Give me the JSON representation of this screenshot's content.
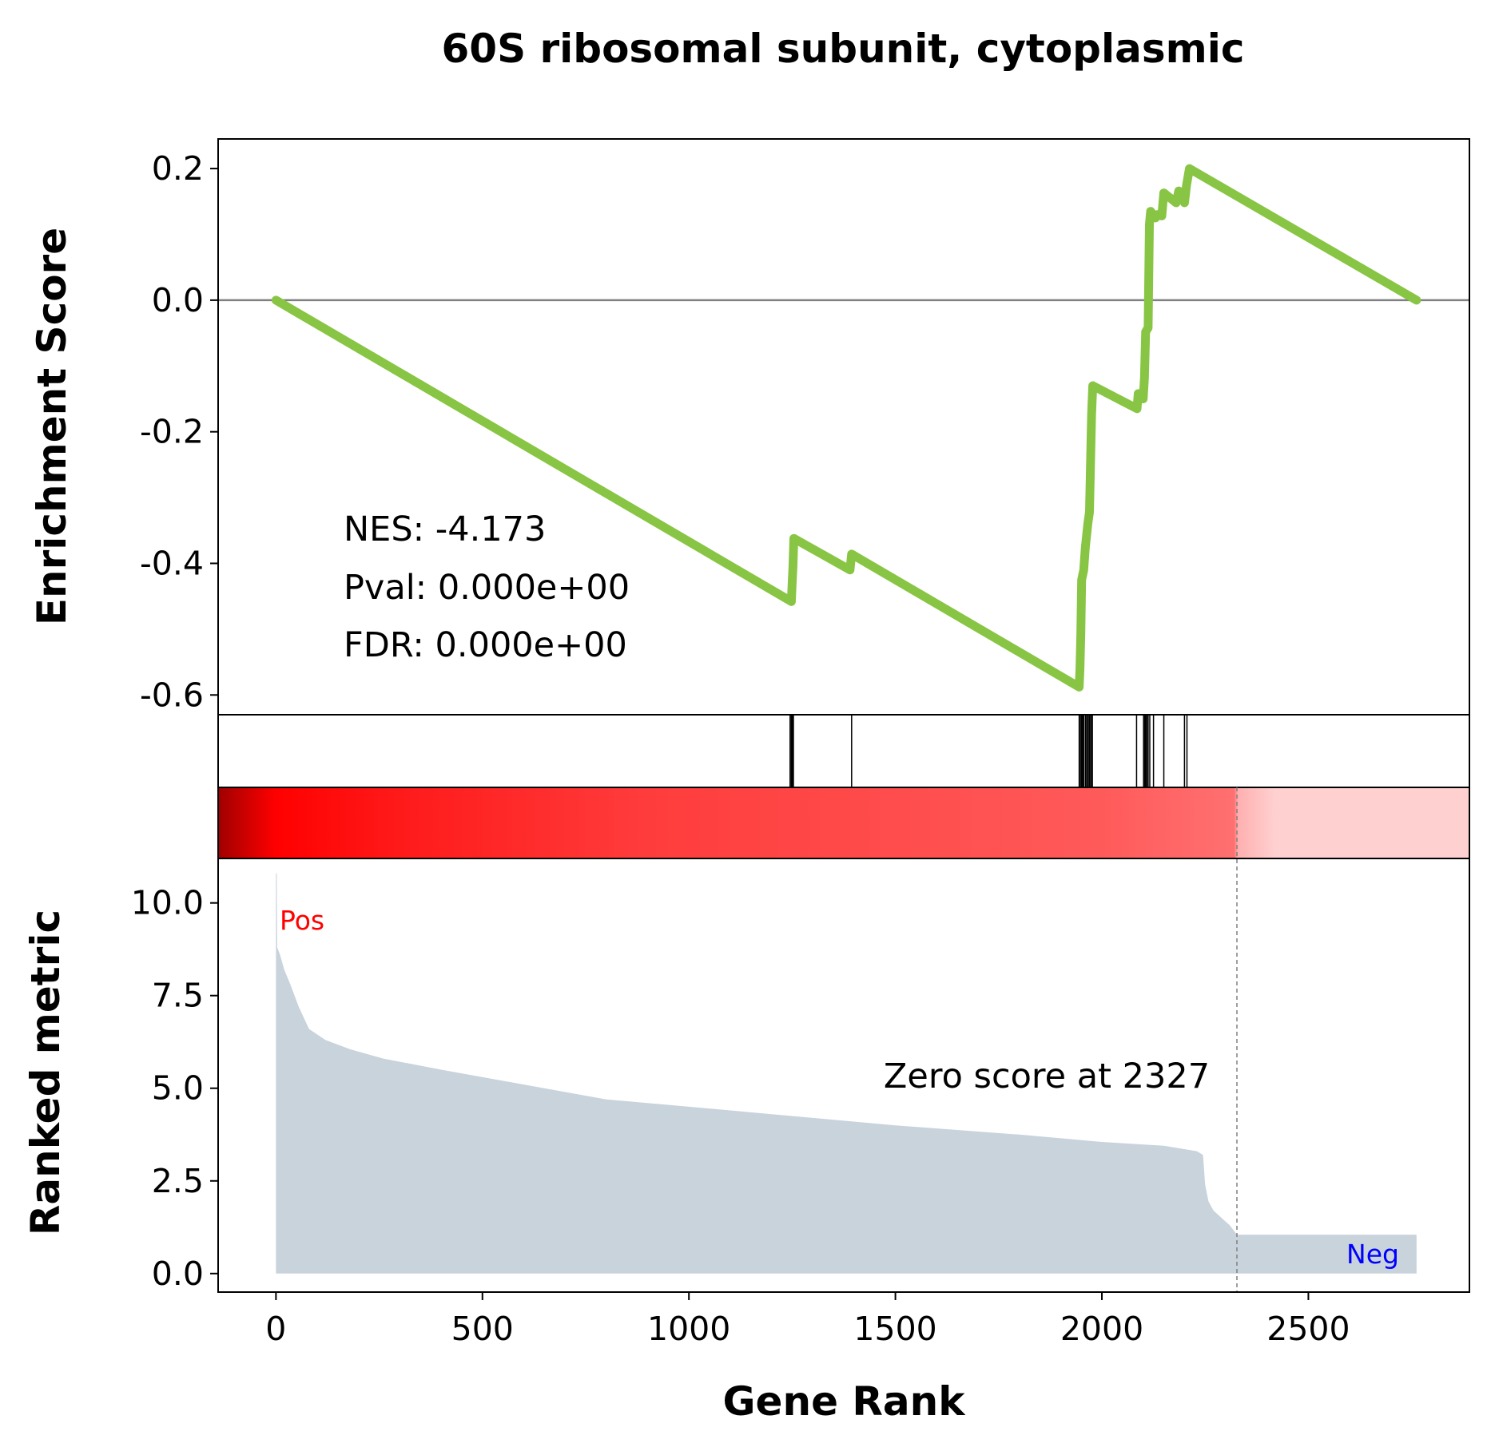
{
  "chart_data": {
    "type": "line",
    "title": "60S ribosomal subunit, cytoplasmic",
    "xlabel": "Gene Rank",
    "xlim": [
      -140,
      2890
    ],
    "xticks": [
      0,
      500,
      1000,
      1500,
      2000,
      2500
    ],
    "xtick_labels": [
      "0",
      "500",
      "1000",
      "1500",
      "2000",
      "2500"
    ],
    "es_panel": {
      "ylabel": "Enrichment Score",
      "ylim": [
        -0.63,
        0.245
      ],
      "yticks": [
        0.2,
        0.0,
        -0.2,
        -0.4,
        -0.6
      ],
      "ytick_labels": [
        "0.2",
        "0.0",
        "-0.2",
        "-0.4",
        "-0.6"
      ],
      "color": "#88c544",
      "zero_line_color": "#808080",
      "points": [
        {
          "x": 0,
          "y": 0.0
        },
        {
          "x": 1248,
          "y": -0.458
        },
        {
          "x": 1250,
          "y": -0.43
        },
        {
          "x": 1252,
          "y": -0.405
        },
        {
          "x": 1254,
          "y": -0.362
        },
        {
          "x": 1390,
          "y": -0.41
        },
        {
          "x": 1394,
          "y": -0.386
        },
        {
          "x": 1945,
          "y": -0.588
        },
        {
          "x": 1947,
          "y": -0.56
        },
        {
          "x": 1949,
          "y": -0.505
        },
        {
          "x": 1951,
          "y": -0.425
        },
        {
          "x": 1956,
          "y": -0.41
        },
        {
          "x": 1960,
          "y": -0.376
        },
        {
          "x": 1966,
          "y": -0.34
        },
        {
          "x": 1970,
          "y": -0.322
        },
        {
          "x": 1975,
          "y": -0.175
        },
        {
          "x": 1978,
          "y": -0.13
        },
        {
          "x": 2085,
          "y": -0.165
        },
        {
          "x": 2088,
          "y": -0.142
        },
        {
          "x": 2100,
          "y": -0.15
        },
        {
          "x": 2103,
          "y": -0.118
        },
        {
          "x": 2106,
          "y": -0.048
        },
        {
          "x": 2112,
          "y": -0.042
        },
        {
          "x": 2115,
          "y": 0.115
        },
        {
          "x": 2118,
          "y": 0.135
        },
        {
          "x": 2130,
          "y": 0.125
        },
        {
          "x": 2134,
          "y": 0.13
        },
        {
          "x": 2145,
          "y": 0.128
        },
        {
          "x": 2150,
          "y": 0.163
        },
        {
          "x": 2180,
          "y": 0.148
        },
        {
          "x": 2186,
          "y": 0.166
        },
        {
          "x": 2200,
          "y": 0.148
        },
        {
          "x": 2205,
          "y": 0.175
        },
        {
          "x": 2212,
          "y": 0.2
        },
        {
          "x": 2762,
          "y": 0.0
        }
      ],
      "annotation": [
        "NES: -4.173",
        "Pval: 0.000e+00",
        "FDR: 0.000e+00"
      ]
    },
    "hits": [
      1245,
      1248,
      1250,
      1252,
      1253,
      1394,
      1945,
      1948,
      1951,
      1953,
      1956,
      1960,
      1963,
      1966,
      1969,
      1971,
      1974,
      1977,
      2084,
      2101,
      2104,
      2106,
      2109,
      2112,
      2116,
      2125,
      2150,
      2200,
      2206
    ],
    "color_bar": {
      "stops": [
        {
          "x": -140,
          "color": "#a00000"
        },
        {
          "x": 0,
          "color": "#ff0000"
        },
        {
          "x": 300,
          "color": "#ff1a1a"
        },
        {
          "x": 900,
          "color": "#ff3c3c"
        },
        {
          "x": 2000,
          "color": "#ff5a5a"
        },
        {
          "x": 2320,
          "color": "#ff7070"
        },
        {
          "x": 2330,
          "color": "#ffb0b0"
        },
        {
          "x": 2420,
          "color": "#ffd0d0"
        },
        {
          "x": 2890,
          "color": "#ffd0d0"
        }
      ]
    },
    "metric_panel": {
      "ylabel": "Ranked metric",
      "ylim": [
        -0.5,
        11.2
      ],
      "yticks": [
        0.0,
        2.5,
        5.0,
        7.5,
        10.0
      ],
      "ytick_labels": [
        "0.0",
        "2.5",
        "5.0",
        "7.5",
        "10.0"
      ],
      "fill_color": "#c8d3dc",
      "points": [
        {
          "x": 0,
          "y": 10.8
        },
        {
          "x": 2,
          "y": 10.8
        },
        {
          "x": 3,
          "y": 8.8
        },
        {
          "x": 10,
          "y": 8.6
        },
        {
          "x": 20,
          "y": 8.2
        },
        {
          "x": 35,
          "y": 7.8
        },
        {
          "x": 55,
          "y": 7.2
        },
        {
          "x": 80,
          "y": 6.6
        },
        {
          "x": 120,
          "y": 6.3
        },
        {
          "x": 180,
          "y": 6.05
        },
        {
          "x": 260,
          "y": 5.8
        },
        {
          "x": 400,
          "y": 5.5
        },
        {
          "x": 600,
          "y": 5.1
        },
        {
          "x": 800,
          "y": 4.7
        },
        {
          "x": 1000,
          "y": 4.5
        },
        {
          "x": 1200,
          "y": 4.3
        },
        {
          "x": 1500,
          "y": 4.0
        },
        {
          "x": 1800,
          "y": 3.75
        },
        {
          "x": 2000,
          "y": 3.55
        },
        {
          "x": 2150,
          "y": 3.45
        },
        {
          "x": 2230,
          "y": 3.3
        },
        {
          "x": 2245,
          "y": 3.2
        },
        {
          "x": 2250,
          "y": 2.4
        },
        {
          "x": 2258,
          "y": 1.95
        },
        {
          "x": 2270,
          "y": 1.7
        },
        {
          "x": 2290,
          "y": 1.5
        },
        {
          "x": 2310,
          "y": 1.3
        },
        {
          "x": 2327,
          "y": 1.05
        },
        {
          "x": 2762,
          "y": 1.05
        }
      ],
      "zero_score_x": 2327,
      "zero_score_label": "Zero score at 2327",
      "pos_label": "Pos",
      "neg_label": "Neg",
      "pos_color": "#ff0000",
      "neg_color": "#0000ff"
    }
  }
}
